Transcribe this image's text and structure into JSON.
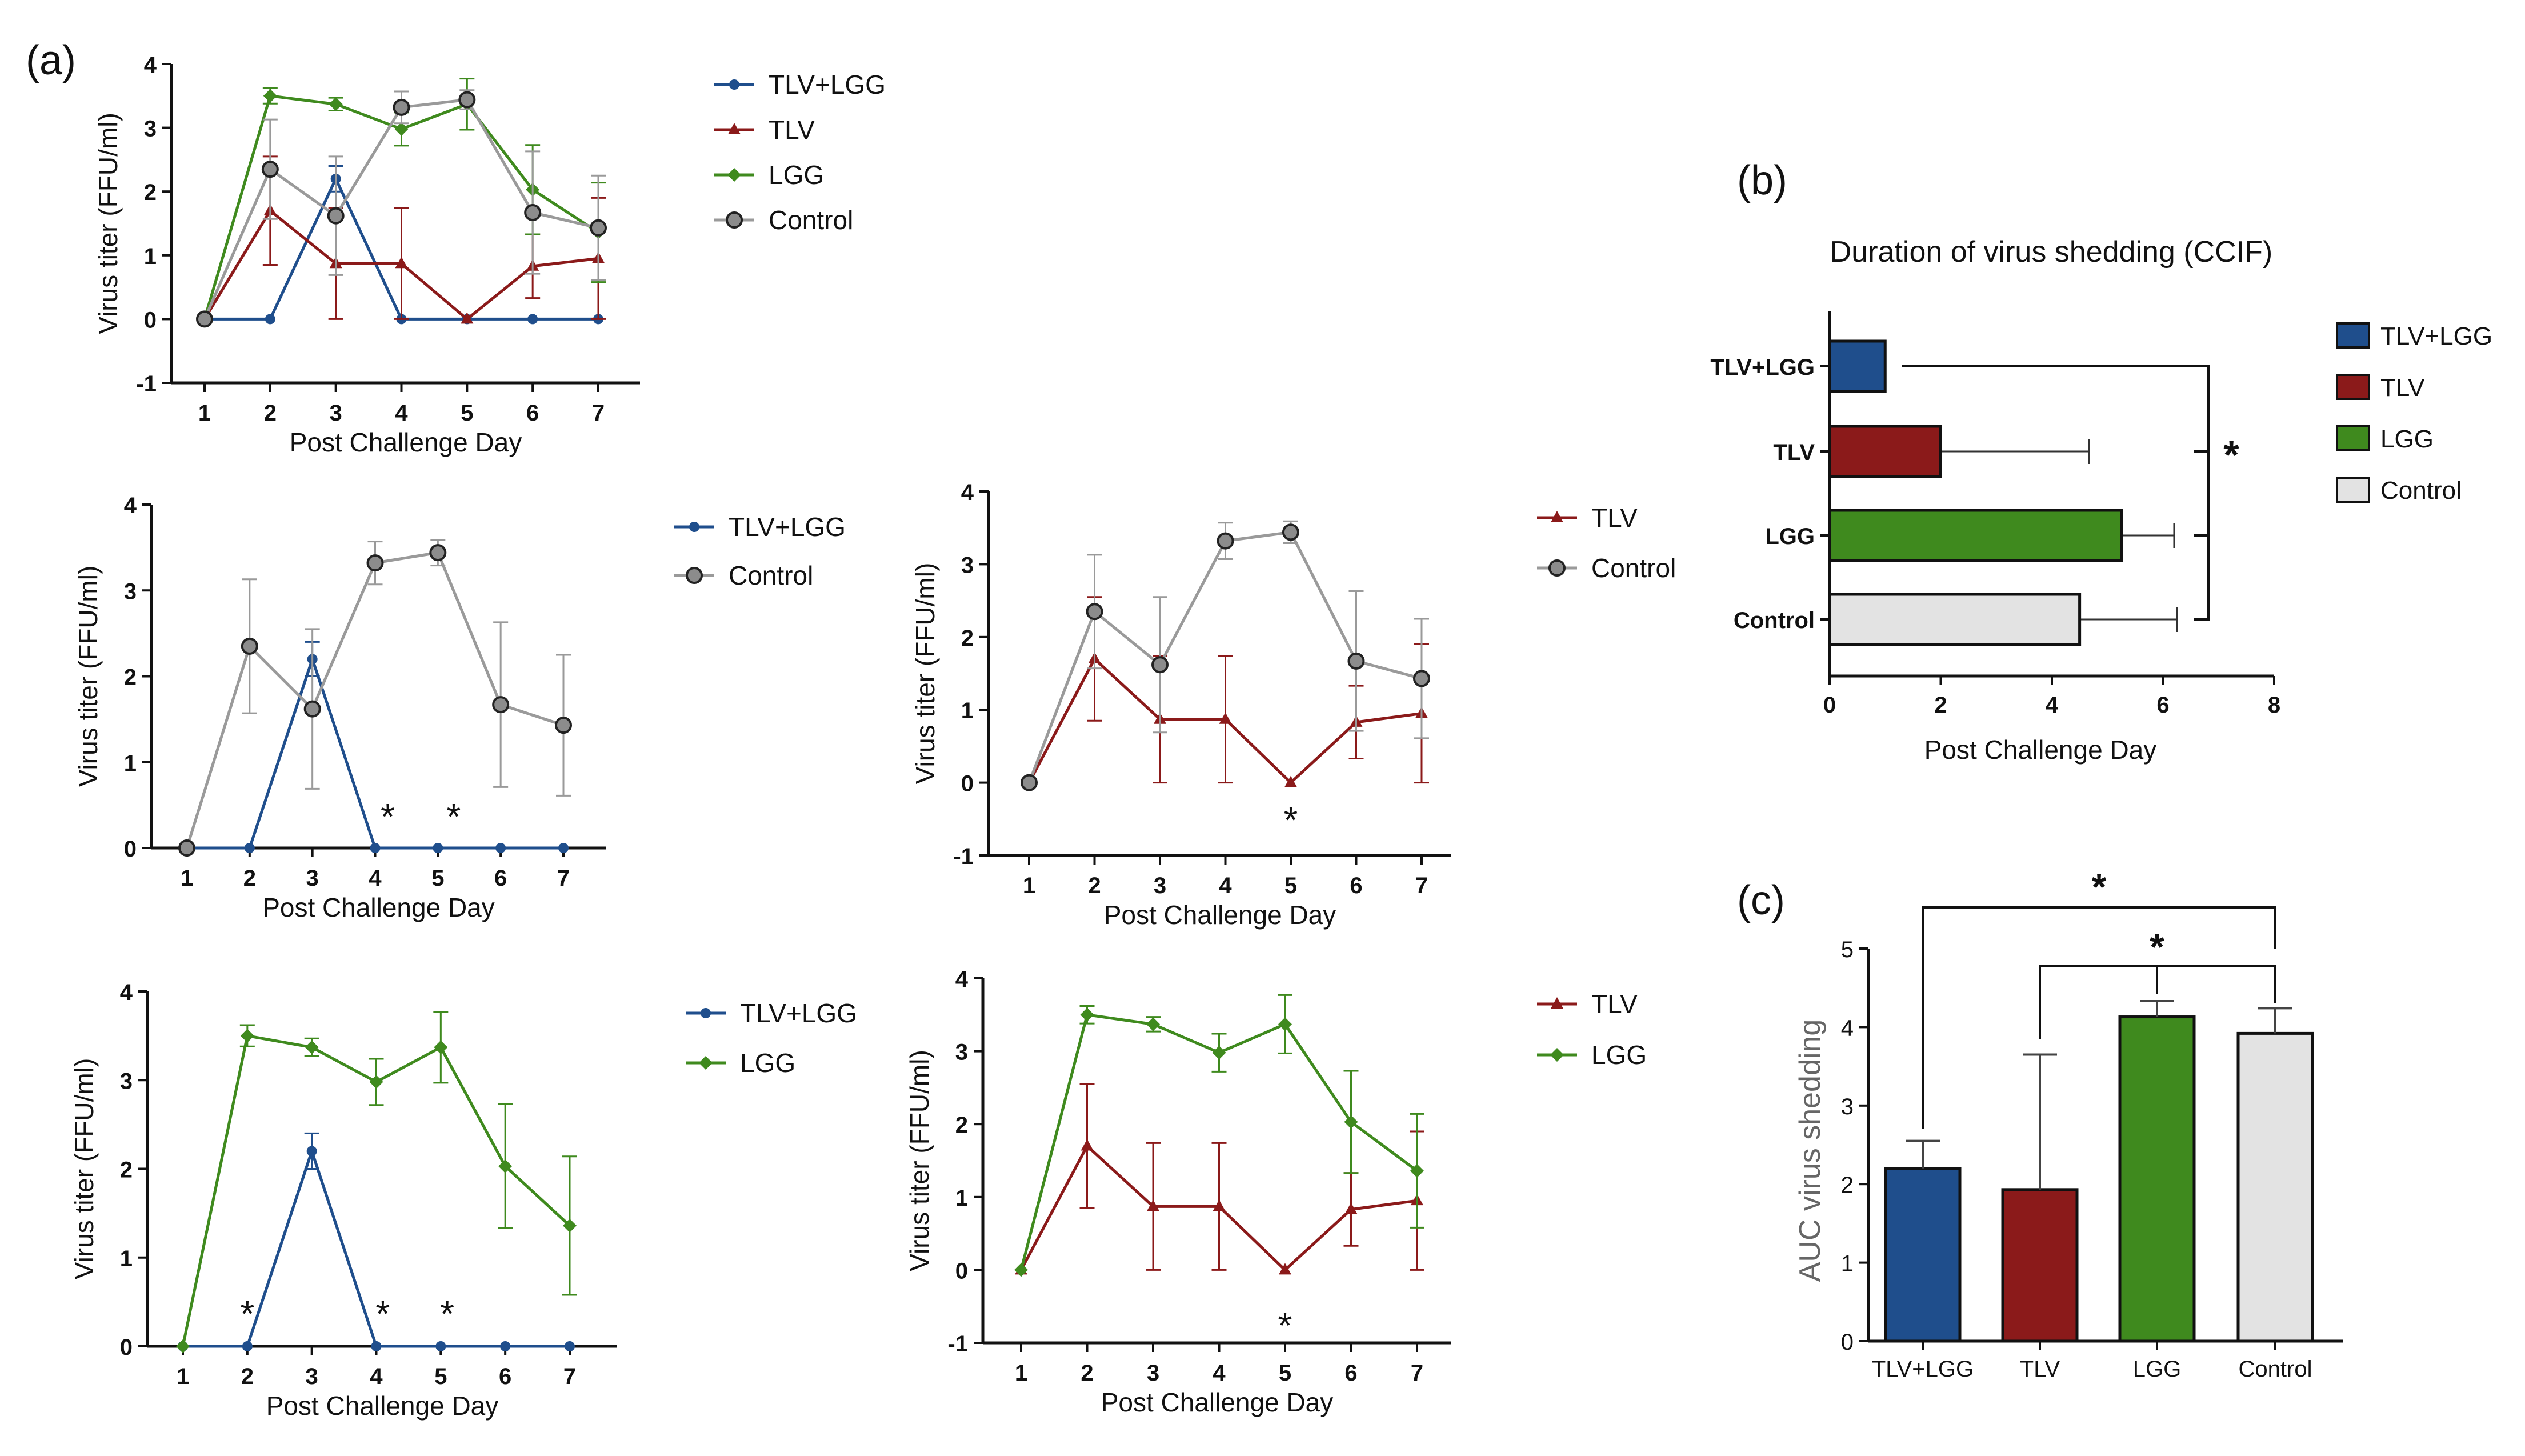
{
  "figure": {
    "panel_labels": [
      "(a)",
      "(b)",
      "(c)"
    ]
  },
  "colors": {
    "TLV+LGG": "#1f4e8c",
    "TLV": "#8b1a1a",
    "LGG": "#3f8a1e",
    "Control": "#9a9a9a",
    "Control_fill": "#e3e3e3",
    "Control_marker": "#8c8c8c"
  },
  "chart_data": [
    {
      "id": "a1",
      "type": "line",
      "xlabel": "Post Challenge Day",
      "ylabel": "Virus titer (FFU/ml)",
      "x": [
        1,
        2,
        3,
        4,
        5,
        6,
        7
      ],
      "ylim": [
        -1,
        4
      ],
      "yticks": [
        -1,
        0,
        1,
        2,
        3,
        4
      ],
      "series": [
        {
          "name": "TLV+LGG",
          "values": [
            0,
            0,
            2.2,
            0,
            0,
            0,
            0
          ],
          "err": [
            0,
            0,
            0.2,
            0,
            0,
            0,
            0
          ]
        },
        {
          "name": "TLV",
          "values": [
            0,
            1.7,
            0.87,
            0.87,
            0,
            0.83,
            0.95
          ],
          "err": [
            0,
            0.85,
            0.87,
            0.87,
            0,
            0.5,
            0.95
          ]
        },
        {
          "name": "LGG",
          "values": [
            0,
            3.5,
            3.37,
            2.98,
            3.37,
            2.03,
            1.36
          ],
          "err": [
            0,
            0.12,
            0.1,
            0.26,
            0.4,
            0.7,
            0.78
          ]
        },
        {
          "name": "Control",
          "values": [
            0,
            2.35,
            1.62,
            3.32,
            3.44,
            1.67,
            1.43
          ],
          "err": [
            0,
            0.78,
            0.93,
            0.25,
            0.15,
            0.96,
            0.82
          ]
        }
      ],
      "annotations": []
    },
    {
      "id": "a2",
      "type": "line",
      "xlabel": "Post Challenge Day",
      "ylabel": "Virus titer (FFU/ml)",
      "x": [
        1,
        2,
        3,
        4,
        5,
        6,
        7
      ],
      "ylim": [
        0,
        4
      ],
      "yticks": [
        0,
        1,
        2,
        3,
        4
      ],
      "series": [
        {
          "name": "TLV+LGG",
          "values": [
            0,
            0,
            2.2,
            0,
            0,
            0,
            0
          ],
          "err": [
            0,
            0,
            0.2,
            0,
            0,
            0,
            0
          ]
        },
        {
          "name": "Control",
          "values": [
            0,
            2.35,
            1.62,
            3.32,
            3.44,
            1.67,
            1.43
          ],
          "err": [
            0,
            0.78,
            0.93,
            0.25,
            0.15,
            0.96,
            0.82
          ]
        }
      ],
      "annotations": [
        {
          "text": "*",
          "x": 4.2,
          "y": 0.42
        },
        {
          "text": "*",
          "x": 5.25,
          "y": 0.42
        }
      ]
    },
    {
      "id": "a3",
      "type": "line",
      "xlabel": "Post Challenge Day",
      "ylabel": "Virus titer (FFU/ml)",
      "x": [
        1,
        2,
        3,
        4,
        5,
        6,
        7
      ],
      "ylim": [
        -1,
        4
      ],
      "yticks": [
        -1,
        0,
        1,
        2,
        3,
        4
      ],
      "series": [
        {
          "name": "TLV",
          "values": [
            0,
            1.7,
            0.87,
            0.87,
            0,
            0.83,
            0.95
          ],
          "err": [
            0,
            0.85,
            0.87,
            0.87,
            0,
            0.5,
            0.95
          ]
        },
        {
          "name": "Control",
          "values": [
            0,
            2.35,
            1.62,
            3.32,
            3.44,
            1.67,
            1.43
          ],
          "err": [
            0,
            0.78,
            0.93,
            0.25,
            0.15,
            0.96,
            0.82
          ]
        }
      ],
      "annotations": [
        {
          "text": "*",
          "x": 5,
          "y": -0.45
        }
      ]
    },
    {
      "id": "a4",
      "type": "line",
      "xlabel": "Post Challenge Day",
      "ylabel": "Virus titer (FFU/ml)",
      "x": [
        1,
        2,
        3,
        4,
        5,
        6,
        7
      ],
      "ylim": [
        0,
        4
      ],
      "yticks": [
        0,
        1,
        2,
        3,
        4
      ],
      "series": [
        {
          "name": "TLV+LGG",
          "values": [
            0,
            0,
            2.2,
            0,
            0,
            0,
            0
          ],
          "err": [
            0,
            0,
            0.2,
            0,
            0,
            0,
            0
          ]
        },
        {
          "name": "LGG",
          "values": [
            0,
            3.5,
            3.37,
            2.98,
            3.37,
            2.03,
            1.36
          ],
          "err": [
            0,
            0.12,
            0.1,
            0.26,
            0.4,
            0.7,
            0.78
          ]
        }
      ],
      "annotations": [
        {
          "text": "*",
          "x": 2,
          "y": 0.42
        },
        {
          "text": "*",
          "x": 4.1,
          "y": 0.42
        },
        {
          "text": "*",
          "x": 5.1,
          "y": 0.42
        }
      ]
    },
    {
      "id": "a5",
      "type": "line",
      "xlabel": "Post Challenge Day",
      "ylabel": "Virus titer (FFU/ml)",
      "x": [
        1,
        2,
        3,
        4,
        5,
        6,
        7
      ],
      "ylim": [
        -1,
        4
      ],
      "yticks": [
        -1,
        0,
        1,
        2,
        3,
        4
      ],
      "series": [
        {
          "name": "TLV",
          "values": [
            0,
            1.7,
            0.87,
            0.87,
            0,
            0.83,
            0.95
          ],
          "err": [
            0,
            0.85,
            0.87,
            0.87,
            0,
            0.5,
            0.95
          ]
        },
        {
          "name": "LGG",
          "values": [
            0,
            3.5,
            3.37,
            2.98,
            3.37,
            2.03,
            1.36
          ],
          "err": [
            0,
            0.12,
            0.1,
            0.26,
            0.4,
            0.7,
            0.78
          ]
        }
      ],
      "annotations": [
        {
          "text": "*",
          "x": 5,
          "y": -0.7
        }
      ]
    },
    {
      "id": "b",
      "type": "bar",
      "orientation": "horizontal",
      "title": "Duration of virus shedding (CCIF)",
      "xlabel": "Post Challenge Day",
      "categories": [
        "TLV+LGG",
        "TLV",
        "LGG",
        "Control"
      ],
      "values": [
        1,
        2,
        5.25,
        4.5
      ],
      "err": [
        0,
        2.67,
        0.95,
        1.75
      ],
      "xlim": [
        0,
        8
      ],
      "xticks": [
        0,
        2,
        4,
        6,
        8
      ],
      "legend": [
        "TLV+LGG",
        "TLV",
        "LGG",
        "Control"
      ],
      "significance": "*"
    },
    {
      "id": "c",
      "type": "bar",
      "ylabel": "AUC virus shedding",
      "categories": [
        "TLV+LGG",
        "TLV",
        "LGG",
        "Control"
      ],
      "values": [
        2.2,
        1.93,
        4.13,
        3.92
      ],
      "err": [
        0.35,
        1.72,
        0.2,
        0.32
      ],
      "ylim": [
        0,
        5
      ],
      "yticks": [
        0,
        1,
        2,
        3,
        4,
        5
      ],
      "significance": [
        "*",
        "*"
      ]
    }
  ]
}
